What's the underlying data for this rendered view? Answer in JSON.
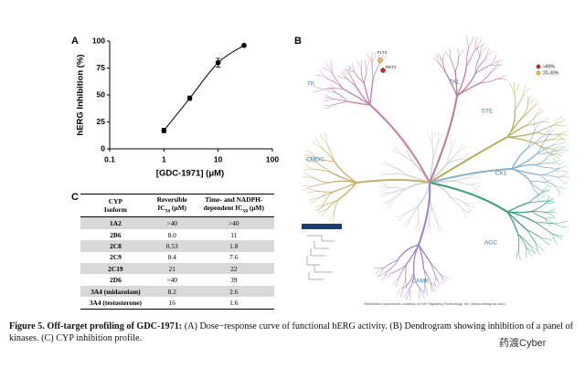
{
  "chart_data": {
    "type": "scatter",
    "panel": "A",
    "x_label": "[GDC-1971] (μM)",
    "y_label": "hERG Inhibition (%)",
    "x": [
      1,
      3,
      10,
      30
    ],
    "values": [
      17,
      47,
      80,
      96
    ],
    "errors": [
      2,
      2,
      4,
      1
    ],
    "color": "#000000",
    "x_log": true,
    "xlim": [
      0.1,
      100
    ],
    "xticks": [
      0.1,
      1,
      10,
      100
    ],
    "ylim": [
      0,
      100
    ],
    "yticks": [
      0,
      25,
      50,
      75,
      100
    ]
  },
  "panel_b": {
    "label": "B",
    "groups": [
      {
        "label": "TK",
        "color": "#c27fa6"
      },
      {
        "label": "TKL",
        "color": "#b87a98"
      },
      {
        "label": "STE",
        "color": "#b3b25c"
      },
      {
        "label": "CK1",
        "color": "#86b0cc"
      },
      {
        "label": "AGC",
        "color": "#3f9c7c"
      },
      {
        "label": "CAMK",
        "color": "#9d80c2"
      },
      {
        "label": "CMGC",
        "color": "#c8ad66"
      }
    ],
    "hits": [
      {
        "label": "FLT3",
        "color": "#e6c43a"
      },
      {
        "label": "RET2",
        "color": "#d4202a"
      }
    ],
    "legend": [
      {
        "label": ">80%",
        "color": "#d4202a"
      },
      {
        "label": "20-30%",
        "color": "#e6c43a"
      }
    ],
    "credit": "*Illustration reproduced courtesy of Cell Signaling Technology, Inc. (www.cellsignal.com)"
  },
  "table": {
    "label": "C",
    "headers": [
      {
        "line1": "CYP",
        "line2": "Isoform"
      },
      {
        "line1": "Reversible",
        "pre": "IC",
        "sub": "50",
        "post": " (μM)"
      },
      {
        "line1": "Time- and NADPH-",
        "pre": "dependent IC",
        "sub": "50",
        "post": " (μM)"
      }
    ],
    "rows": [
      [
        "1A2",
        ">40",
        ">40"
      ],
      [
        "2B6",
        "8.0",
        "11"
      ],
      [
        "2C8",
        "0.53",
        "1.8"
      ],
      [
        "2C9",
        "8.4",
        "7.6"
      ],
      [
        "2C19",
        "21",
        "22"
      ],
      [
        "2D6",
        ">40",
        "39"
      ],
      [
        "3A4 (midazolam)",
        "8.2",
        "2.6"
      ],
      [
        "3A4 (testosterone)",
        "16",
        "1.6"
      ]
    ]
  },
  "caption": {
    "lead": "Figure 5. Off-target profiling of GDC-1971:",
    "text": " (A) Dose−response curve of functional hERG activity. (B) Dendrogram showing inhibition of a panel of kinases. (C) CYP inhibition profile."
  },
  "watermark": "药渡Cyber"
}
